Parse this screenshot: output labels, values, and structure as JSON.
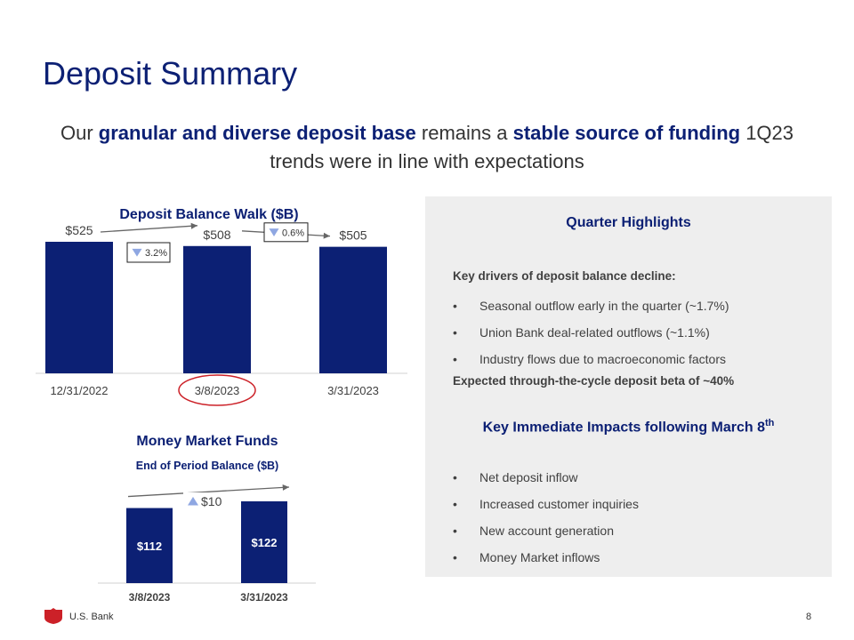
{
  "page": {
    "title": "Deposit Summary",
    "subtitle_parts": [
      {
        "text": "Our ",
        "bold": false
      },
      {
        "text": "granular and diverse deposit base",
        "bold": true
      },
      {
        "text": " remains a ",
        "bold": false
      },
      {
        "text": "stable source of funding",
        "bold": true
      },
      {
        "text": " 1Q23 trends were in line with expectations",
        "bold": false
      }
    ],
    "colors": {
      "navy": "#0c2074",
      "panel": "#eeeeee",
      "highlight_circle": "#cc2128",
      "arrow": "#666666",
      "change_marker": "#8fa7e2"
    }
  },
  "chart_data": [
    {
      "type": "bar",
      "title": "Deposit Balance Walk ($B)",
      "categories": [
        "12/31/2022",
        "3/8/2023",
        "3/31/2023"
      ],
      "values": [
        525,
        508,
        505
      ],
      "value_labels": [
        "$525",
        "$508",
        "$505"
      ],
      "changes": [
        {
          "label": "3.2%",
          "direction": "down"
        },
        {
          "label": "0.6%",
          "direction": "down"
        }
      ],
      "highlighted_category": "3/8/2023",
      "bar_color": "#0c2074"
    },
    {
      "type": "bar",
      "title": "Money Market Funds",
      "subtitle": "End of Period Balance ($B)",
      "categories": [
        "3/8/2023",
        "3/31/2023"
      ],
      "values": [
        112,
        122
      ],
      "value_labels": [
        "$112",
        "$122"
      ],
      "change": {
        "label": "$10",
        "direction": "up"
      },
      "bar_color": "#0c2074"
    }
  ],
  "highlights": {
    "title": "Quarter Highlights",
    "drivers_heading": "Key drivers of deposit balance decline:",
    "drivers": [
      "Seasonal outflow early in the quarter (~1.7%)",
      "Union Bank deal-related outflows (~1.1%)",
      "Industry flows due to macroeconomic factors"
    ],
    "beta_note": "Expected through-the-cycle deposit beta of ~40%",
    "impacts_title": "Key Immediate Impacts following March 8",
    "impacts_title_sup": "th",
    "impacts": [
      "Net deposit inflow",
      "Increased customer inquiries",
      "New account generation",
      "Money Market inflows"
    ]
  },
  "footer": {
    "brand": "U.S. Bank",
    "page_number": "8",
    "logo_icon": "us-bank-shield-icon"
  }
}
